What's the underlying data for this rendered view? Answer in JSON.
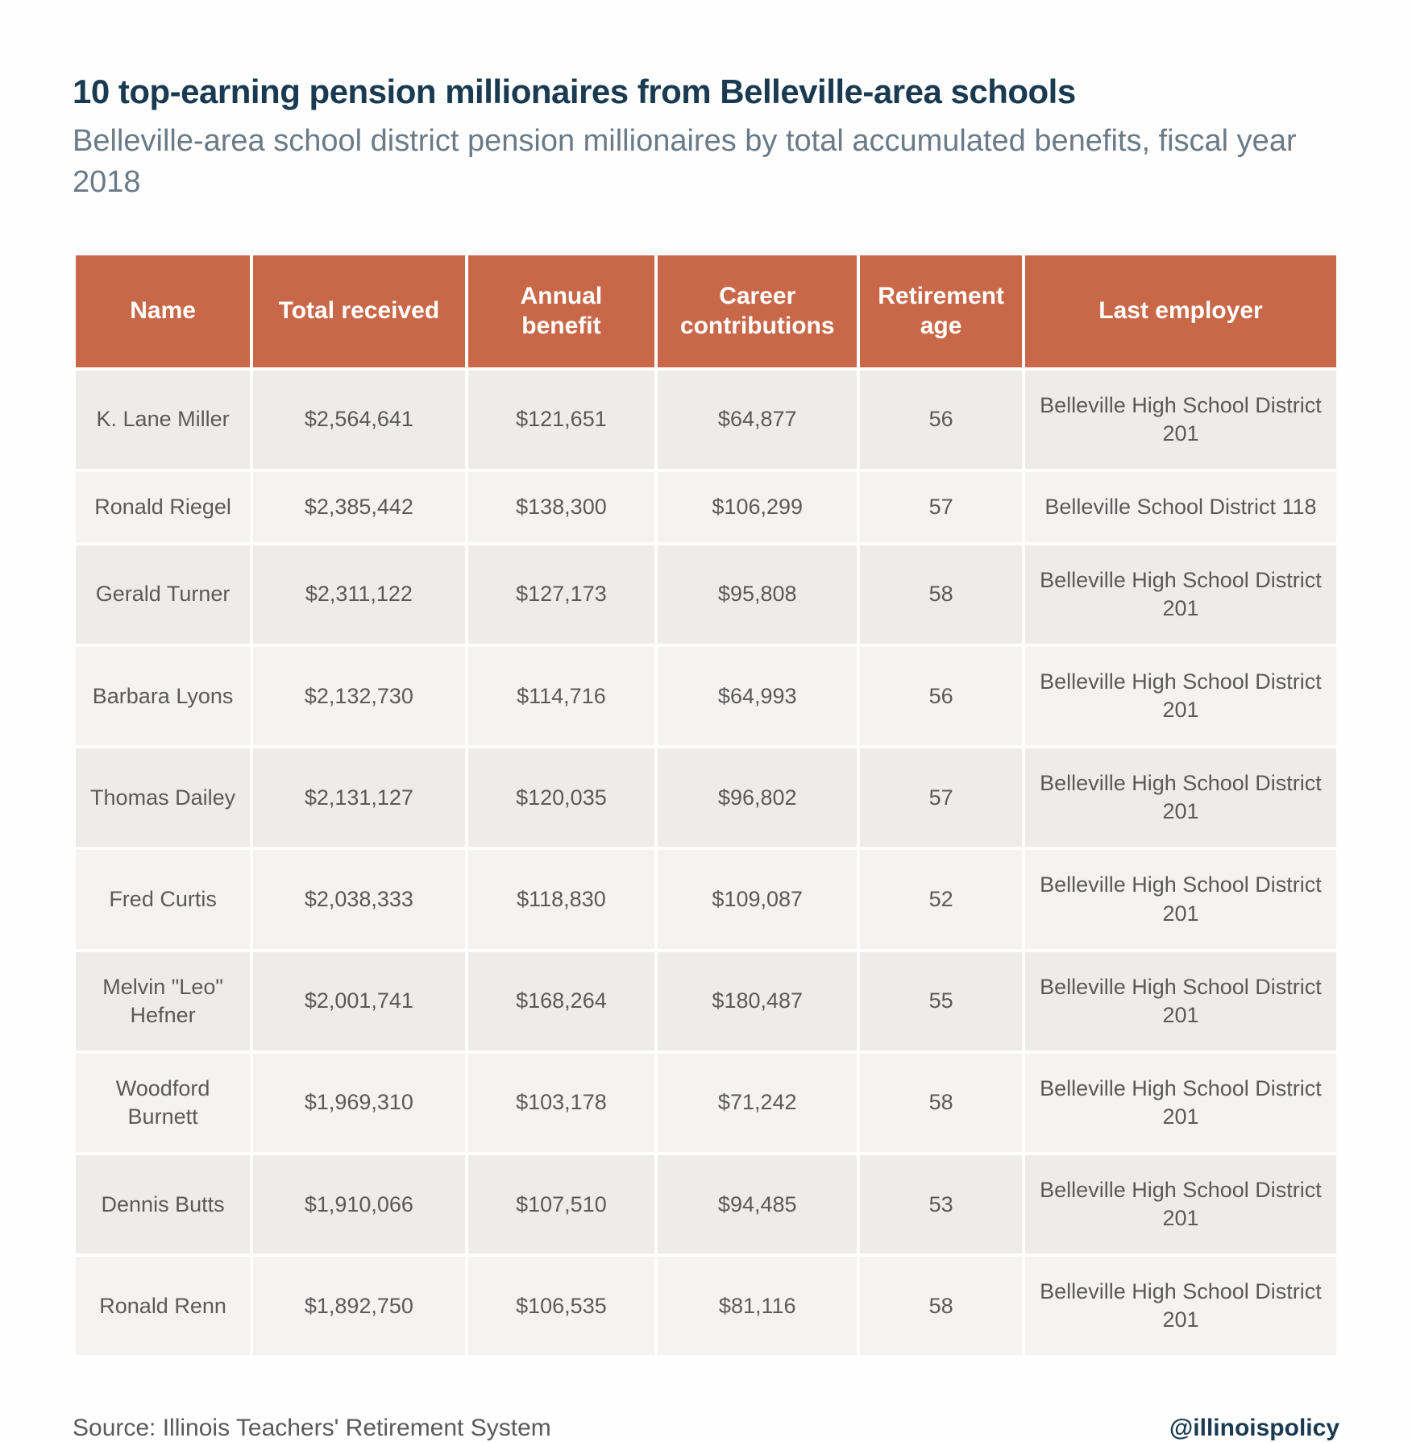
{
  "header": {
    "title": "10 top-earning pension millionaires from Belleville-area schools",
    "subtitle": "Belleville-area school district pension millionaires by total accumulated benefits, fiscal year 2018"
  },
  "table": {
    "type": "table",
    "header_bg": "#c96848",
    "header_fg": "#ffffff",
    "row_bg_odd": "#eeeceb",
    "row_bg_even": "#f5f3f2",
    "cell_fg": "#5a5a5a",
    "columns": [
      {
        "label": "Name"
      },
      {
        "label": "Total received"
      },
      {
        "label": "Annual benefit"
      },
      {
        "label": "Career contributions"
      },
      {
        "label": "Retirement age"
      },
      {
        "label": "Last employer"
      }
    ],
    "rows": [
      {
        "name": "K. Lane Miller",
        "total": "$2,564,641",
        "annual": "$121,651",
        "contrib": "$64,877",
        "age": "56",
        "employer": "Belleville High School District 201"
      },
      {
        "name": "Ronald Riegel",
        "total": "$2,385,442",
        "annual": "$138,300",
        "contrib": "$106,299",
        "age": "57",
        "employer": "Belleville School District 118"
      },
      {
        "name": "Gerald Turner",
        "total": "$2,311,122",
        "annual": "$127,173",
        "contrib": "$95,808",
        "age": "58",
        "employer": "Belleville High School District 201"
      },
      {
        "name": "Barbara Lyons",
        "total": "$2,132,730",
        "annual": "$114,716",
        "contrib": "$64,993",
        "age": "56",
        "employer": "Belleville High School District 201"
      },
      {
        "name": "Thomas Dailey",
        "total": "$2,131,127",
        "annual": "$120,035",
        "contrib": "$96,802",
        "age": "57",
        "employer": "Belleville High School District 201"
      },
      {
        "name": "Fred Curtis",
        "total": "$2,038,333",
        "annual": "$118,830",
        "contrib": "$109,087",
        "age": "52",
        "employer": "Belleville High School District 201"
      },
      {
        "name": "Melvin \"Leo\" Hefner",
        "total": "$2,001,741",
        "annual": "$168,264",
        "contrib": "$180,487",
        "age": "55",
        "employer": "Belleville High School District 201"
      },
      {
        "name": "Woodford Burnett",
        "total": "$1,969,310",
        "annual": "$103,178",
        "contrib": "$71,242",
        "age": "58",
        "employer": "Belleville High School District 201"
      },
      {
        "name": "Dennis Butts",
        "total": "$1,910,066",
        "annual": "$107,510",
        "contrib": "$94,485",
        "age": "53",
        "employer": "Belleville High School District 201"
      },
      {
        "name": "Ronald Renn",
        "total": "$1,892,750",
        "annual": "$106,535",
        "contrib": "$81,116",
        "age": "58",
        "employer": "Belleville High School District 201"
      }
    ]
  },
  "footer": {
    "source": "Source: Illinois Teachers' Retirement System",
    "handle": "@illinoispolicy"
  }
}
